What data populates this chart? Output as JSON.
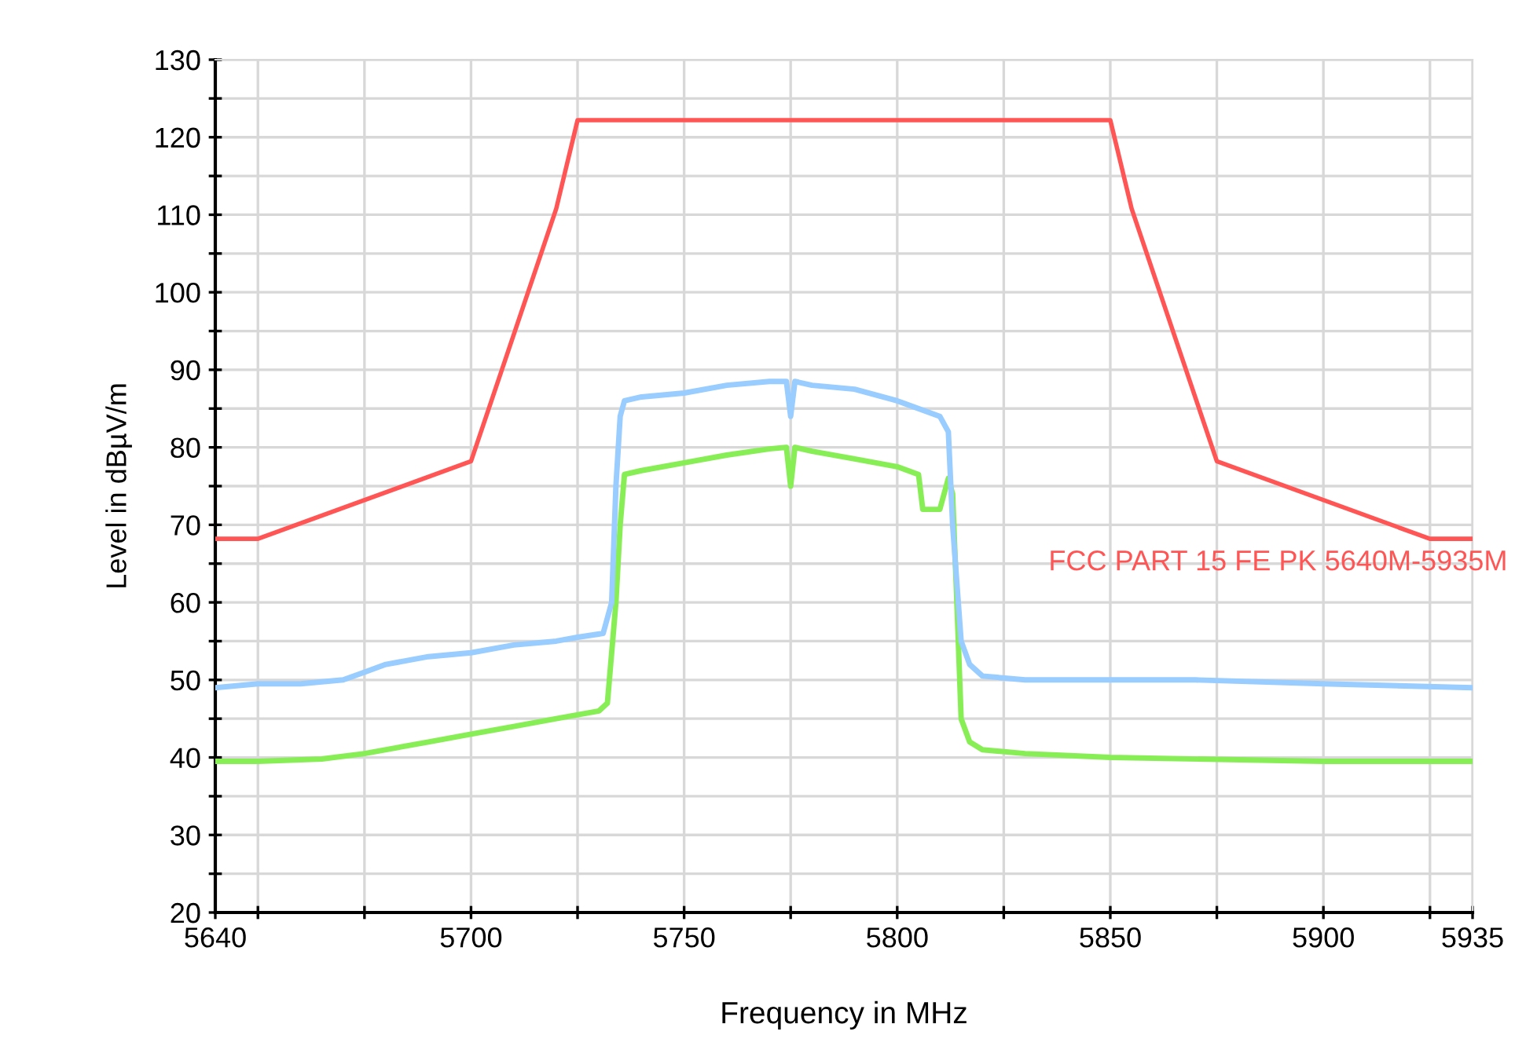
{
  "chart_data": {
    "type": "line",
    "xlabel": "Frequency in MHz",
    "ylabel": "Level in dBµV/m",
    "xlim": [
      5640,
      5935
    ],
    "ylim": [
      20,
      130
    ],
    "xticks": [
      5640,
      {
        "value": 5650,
        "label": null
      },
      {
        "value": 5675,
        "label": null
      },
      5700,
      {
        "value": 5725,
        "label": null
      },
      5750,
      {
        "value": 5775,
        "label": null
      },
      5800,
      {
        "value": 5825,
        "label": null
      },
      5850,
      {
        "value": 5875,
        "label": null
      },
      5900,
      {
        "value": 5925,
        "label": null
      },
      5935
    ],
    "yticks": [
      20,
      {
        "value": 25,
        "label": null
      },
      30,
      {
        "value": 35,
        "label": null
      },
      40,
      {
        "value": 45,
        "label": null
      },
      50,
      {
        "value": 55,
        "label": null
      },
      60,
      {
        "value": 65,
        "label": null
      },
      70,
      {
        "value": 75,
        "label": null
      },
      80,
      {
        "value": 85,
        "label": null
      },
      90,
      {
        "value": 95,
        "label": null
      },
      100,
      {
        "value": 105,
        "label": null
      },
      110,
      {
        "value": 115,
        "label": null
      },
      120,
      {
        "value": 125,
        "label": null
      },
      130
    ],
    "grid": true,
    "legend": false,
    "marker": "none",
    "line_style": "solid",
    "series": [
      {
        "name": "FCC PART 15 FE PK 5640M-5935M",
        "color": "#ff5555",
        "x": [
          5640,
          5650,
          5700,
          5720,
          5725,
          5850,
          5855,
          5875,
          5925,
          5935
        ],
        "values": [
          68.2,
          68.2,
          78.2,
          110.8,
          122.2,
          122.2,
          110.8,
          78.2,
          68.2,
          68.2
        ]
      },
      {
        "color": "#99ccff",
        "x": [
          5640,
          5650,
          5660,
          5670,
          5675,
          5680,
          5690,
          5700,
          5710,
          5720,
          5725,
          5731,
          5733,
          5734,
          5735,
          5736,
          5740,
          5750,
          5760,
          5770,
          5774,
          5775,
          5776,
          5780,
          5790,
          5800,
          5810,
          5812,
          5813,
          5815,
          5817,
          5820,
          5830,
          5850,
          5870,
          5900,
          5935
        ],
        "values": [
          49,
          49.5,
          49.5,
          50,
          51,
          52,
          53,
          53.5,
          54.5,
          55,
          55.5,
          56,
          60,
          75,
          84,
          86,
          86.5,
          87,
          88,
          88.5,
          88.5,
          84,
          88.5,
          88,
          87.5,
          86,
          84,
          82,
          70,
          55,
          52,
          50.5,
          50,
          50,
          50,
          49.5,
          49
        ]
      },
      {
        "color": "#88ee55",
        "x": [
          5640,
          5650,
          5665,
          5675,
          5690,
          5700,
          5710,
          5720,
          5730,
          5732,
          5734,
          5735,
          5736,
          5740,
          5750,
          5760,
          5770,
          5774,
          5775,
          5776,
          5780,
          5790,
          5800,
          5805,
          5806,
          5810,
          5812,
          5813,
          5814,
          5815,
          5817,
          5820,
          5830,
          5850,
          5900,
          5935
        ],
        "values": [
          39.5,
          39.5,
          39.8,
          40.5,
          42,
          43,
          44,
          45,
          46,
          47,
          60,
          70,
          76.5,
          77,
          78,
          79,
          79.8,
          80,
          75,
          80,
          79.5,
          78.5,
          77.5,
          76.5,
          72,
          72,
          76,
          74,
          60,
          45,
          42,
          41,
          40.5,
          40,
          39.5,
          39.5
        ]
      }
    ]
  }
}
